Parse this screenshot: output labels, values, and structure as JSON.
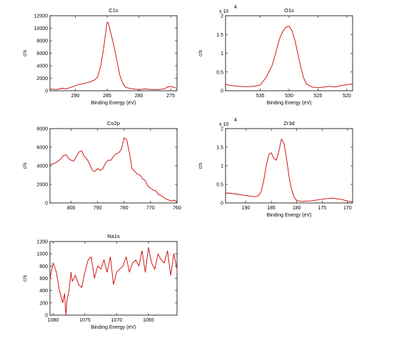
{
  "figure": {
    "line_color": "#cc0000"
  },
  "chart_data": [
    {
      "type": "line",
      "title": "C1s",
      "xlabel": "Binding Energy (eV)",
      "ylabel": "c/s",
      "x_reversed": true,
      "xlim": [
        294,
        274
      ],
      "ylim": [
        0,
        12000
      ],
      "x_ticks": [
        290,
        285,
        280,
        275
      ],
      "y_ticks": [
        0,
        2000,
        4000,
        6000,
        8000,
        10000,
        12000
      ],
      "y_multiplier": "",
      "x": [
        294,
        293,
        292,
        291.5,
        291,
        290,
        289.5,
        289,
        288.5,
        288,
        287.5,
        287,
        286.5,
        286,
        285.6,
        285.2,
        285,
        284.8,
        284.5,
        284,
        283.5,
        283,
        282.5,
        282,
        281,
        280,
        279,
        278,
        277,
        276,
        275.5,
        275,
        274
      ],
      "values": [
        300,
        200,
        400,
        300,
        450,
        800,
        1000,
        1100,
        1200,
        1350,
        1500,
        1700,
        2200,
        4000,
        6500,
        9500,
        11000,
        10800,
        9500,
        7500,
        5000,
        2500,
        1100,
        500,
        300,
        200,
        300,
        200,
        200,
        300,
        600,
        700,
        400
      ]
    },
    {
      "type": "line",
      "title": "O1s",
      "xlabel": "Binding Energy (eV)",
      "ylabel": "c/s",
      "x_reversed": true,
      "xlim": [
        541,
        519
      ],
      "ylim": [
        0,
        2
      ],
      "x_ticks": [
        535,
        530,
        525,
        520
      ],
      "y_ticks": [
        0,
        0.5,
        1,
        1.5,
        2
      ],
      "y_multiplier": "x 10",
      "y_multiplier_exp": "4",
      "x": [
        541,
        540,
        539,
        538,
        537,
        536,
        535,
        534,
        533,
        532.5,
        532,
        531.5,
        531,
        530.5,
        530,
        529.5,
        529,
        528.5,
        528,
        527.5,
        527,
        526,
        525,
        524,
        523,
        522,
        521,
        520,
        519
      ],
      "values": [
        0.17,
        0.14,
        0.12,
        0.11,
        0.11,
        0.12,
        0.15,
        0.35,
        0.65,
        0.9,
        1.2,
        1.45,
        1.6,
        1.7,
        1.72,
        1.6,
        1.35,
        1.0,
        0.65,
        0.35,
        0.18,
        0.1,
        0.08,
        0.1,
        0.12,
        0.1,
        0.14,
        0.16,
        0.18
      ]
    },
    {
      "type": "line",
      "title": "Co2p",
      "xlabel": "",
      "ylabel": "c/s",
      "x_reversed": true,
      "xlim": [
        808,
        760
      ],
      "ylim": [
        0,
        8000
      ],
      "x_ticks": [
        800,
        790,
        780,
        770,
        760
      ],
      "y_ticks": [
        0,
        2000,
        4000,
        6000,
        8000
      ],
      "y_multiplier": "",
      "x": [
        808,
        806,
        804,
        803,
        802,
        801,
        800,
        799,
        798,
        797,
        796,
        795,
        794,
        793,
        792,
        791,
        790,
        789,
        788,
        787,
        786,
        785,
        784,
        783,
        782,
        781,
        780,
        779,
        778,
        777,
        776,
        775,
        774,
        773,
        772,
        771,
        770,
        769,
        768,
        767,
        766,
        765,
        764,
        763,
        762,
        761,
        760
      ],
      "values": [
        4100,
        4300,
        4700,
        5100,
        5200,
        4800,
        4600,
        4500,
        5000,
        5500,
        5600,
        5000,
        4700,
        4200,
        3500,
        3400,
        3700,
        3500,
        3700,
        4300,
        4600,
        4600,
        5000,
        5300,
        5400,
        5800,
        7000,
        6800,
        5400,
        3700,
        3400,
        3100,
        3000,
        2600,
        2400,
        1800,
        1600,
        1400,
        1300,
        900,
        800,
        600,
        400,
        300,
        200,
        300,
        100
      ]
    },
    {
      "type": "line",
      "title": "Zr3d",
      "xlabel": "Binding Energy (eV)",
      "ylabel": "c/s",
      "x_reversed": true,
      "xlim": [
        194,
        169
      ],
      "ylim": [
        0,
        2
      ],
      "x_ticks": [
        190,
        185,
        180,
        175,
        170
      ],
      "y_ticks": [
        0,
        0.5,
        1,
        1.5,
        2
      ],
      "y_multiplier": "x 10",
      "y_multiplier_exp": "4",
      "x": [
        194,
        193,
        192,
        191,
        190,
        189,
        188,
        187.5,
        187,
        186.5,
        186,
        185.5,
        185,
        184.5,
        184,
        183.5,
        183,
        182.5,
        182,
        181.5,
        181,
        180.5,
        180,
        179,
        178,
        177,
        176,
        175,
        174,
        173,
        172,
        171,
        170,
        169
      ],
      "values": [
        0.27,
        0.26,
        0.24,
        0.22,
        0.2,
        0.18,
        0.17,
        0.2,
        0.3,
        0.6,
        1.0,
        1.3,
        1.35,
        1.2,
        1.15,
        1.4,
        1.72,
        1.6,
        1.2,
        0.7,
        0.35,
        0.15,
        0.07,
        0.04,
        0.05,
        0.06,
        0.08,
        0.1,
        0.12,
        0.13,
        0.11,
        0.09,
        0.05,
        0.03
      ]
    },
    {
      "type": "line",
      "title": "Na1s",
      "xlabel": "Binding Energy (eV)",
      "ylabel": "c/s",
      "x_reversed": true,
      "xlim": [
        1080.5,
        1060.5
      ],
      "ylim": [
        0,
        1200
      ],
      "x_ticks": [
        1080,
        1075,
        1070,
        1065
      ],
      "y_ticks": [
        0,
        200,
        400,
        600,
        800,
        1000,
        1200
      ],
      "y_multiplier": "",
      "x": [
        1080.5,
        1080,
        1079.5,
        1079,
        1078.5,
        1078.2,
        1078,
        1077.8,
        1077.5,
        1077.2,
        1077,
        1076.5,
        1076,
        1075.5,
        1075,
        1074.5,
        1074,
        1073.5,
        1073,
        1072.5,
        1072,
        1071.5,
        1071,
        1070.5,
        1070,
        1069.5,
        1069,
        1068.5,
        1068,
        1067.5,
        1067,
        1066.5,
        1066,
        1065.5,
        1065,
        1064.5,
        1064,
        1063.5,
        1063,
        1062.5,
        1062,
        1061.5,
        1061,
        1060.5
      ],
      "values": [
        600,
        850,
        700,
        400,
        200,
        350,
        0,
        250,
        400,
        700,
        550,
        650,
        500,
        450,
        700,
        900,
        950,
        600,
        800,
        750,
        900,
        700,
        950,
        500,
        700,
        750,
        800,
        950,
        700,
        850,
        900,
        800,
        1050,
        700,
        1100,
        850,
        750,
        1000,
        900,
        850,
        1050,
        650,
        1000,
        750
      ]
    }
  ]
}
